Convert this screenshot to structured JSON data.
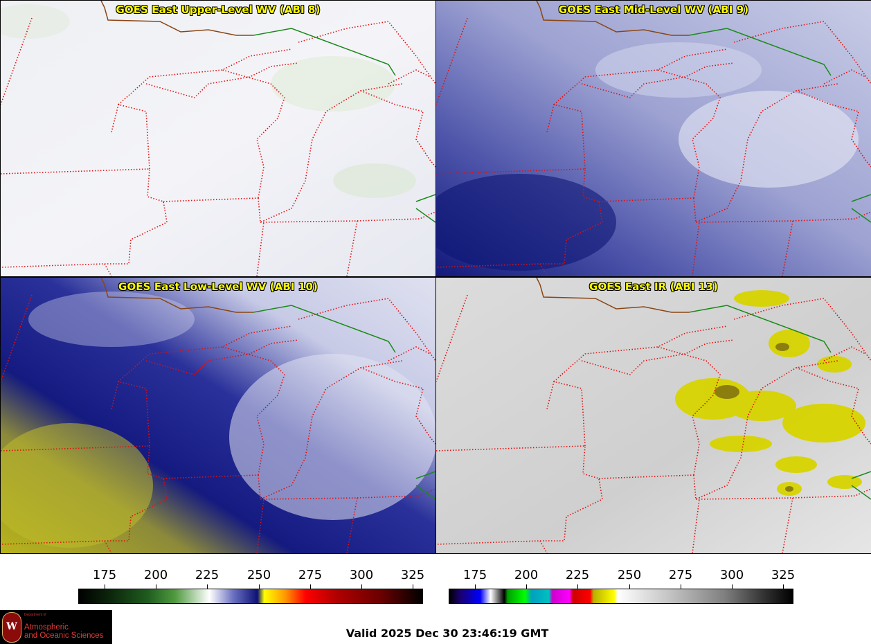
{
  "panels": [
    {
      "title": "GOES East Upper-Level WV (ABI 8)",
      "theme": "upper"
    },
    {
      "title": "GOES East Mid-Level WV (ABI 9)",
      "theme": "mid"
    },
    {
      "title": "GOES East Low-Level WV (ABI 10)",
      "theme": "low"
    },
    {
      "title": "GOES East IR (ABI 13)",
      "theme": "ir"
    }
  ],
  "colorbars": [
    {
      "name": "water-vapor-colorbar",
      "ticks": [
        "175",
        "200",
        "225",
        "250",
        "275",
        "300",
        "325"
      ]
    },
    {
      "name": "ir-colorbar",
      "ticks": [
        "175",
        "200",
        "225",
        "250",
        "275",
        "300",
        "325"
      ]
    }
  ],
  "colors": {
    "title_text": "#ffff00",
    "state_borders": "#e01010",
    "country_border": "#1a8a1a",
    "coast": "#8b4513"
  },
  "valid_time": "Valid 2025 Dec 30 23:46:19 GMT",
  "logo": {
    "dept": "Department of",
    "line1": "Atmospheric",
    "line2": "and Oceanic Sciences",
    "seal": "W"
  }
}
